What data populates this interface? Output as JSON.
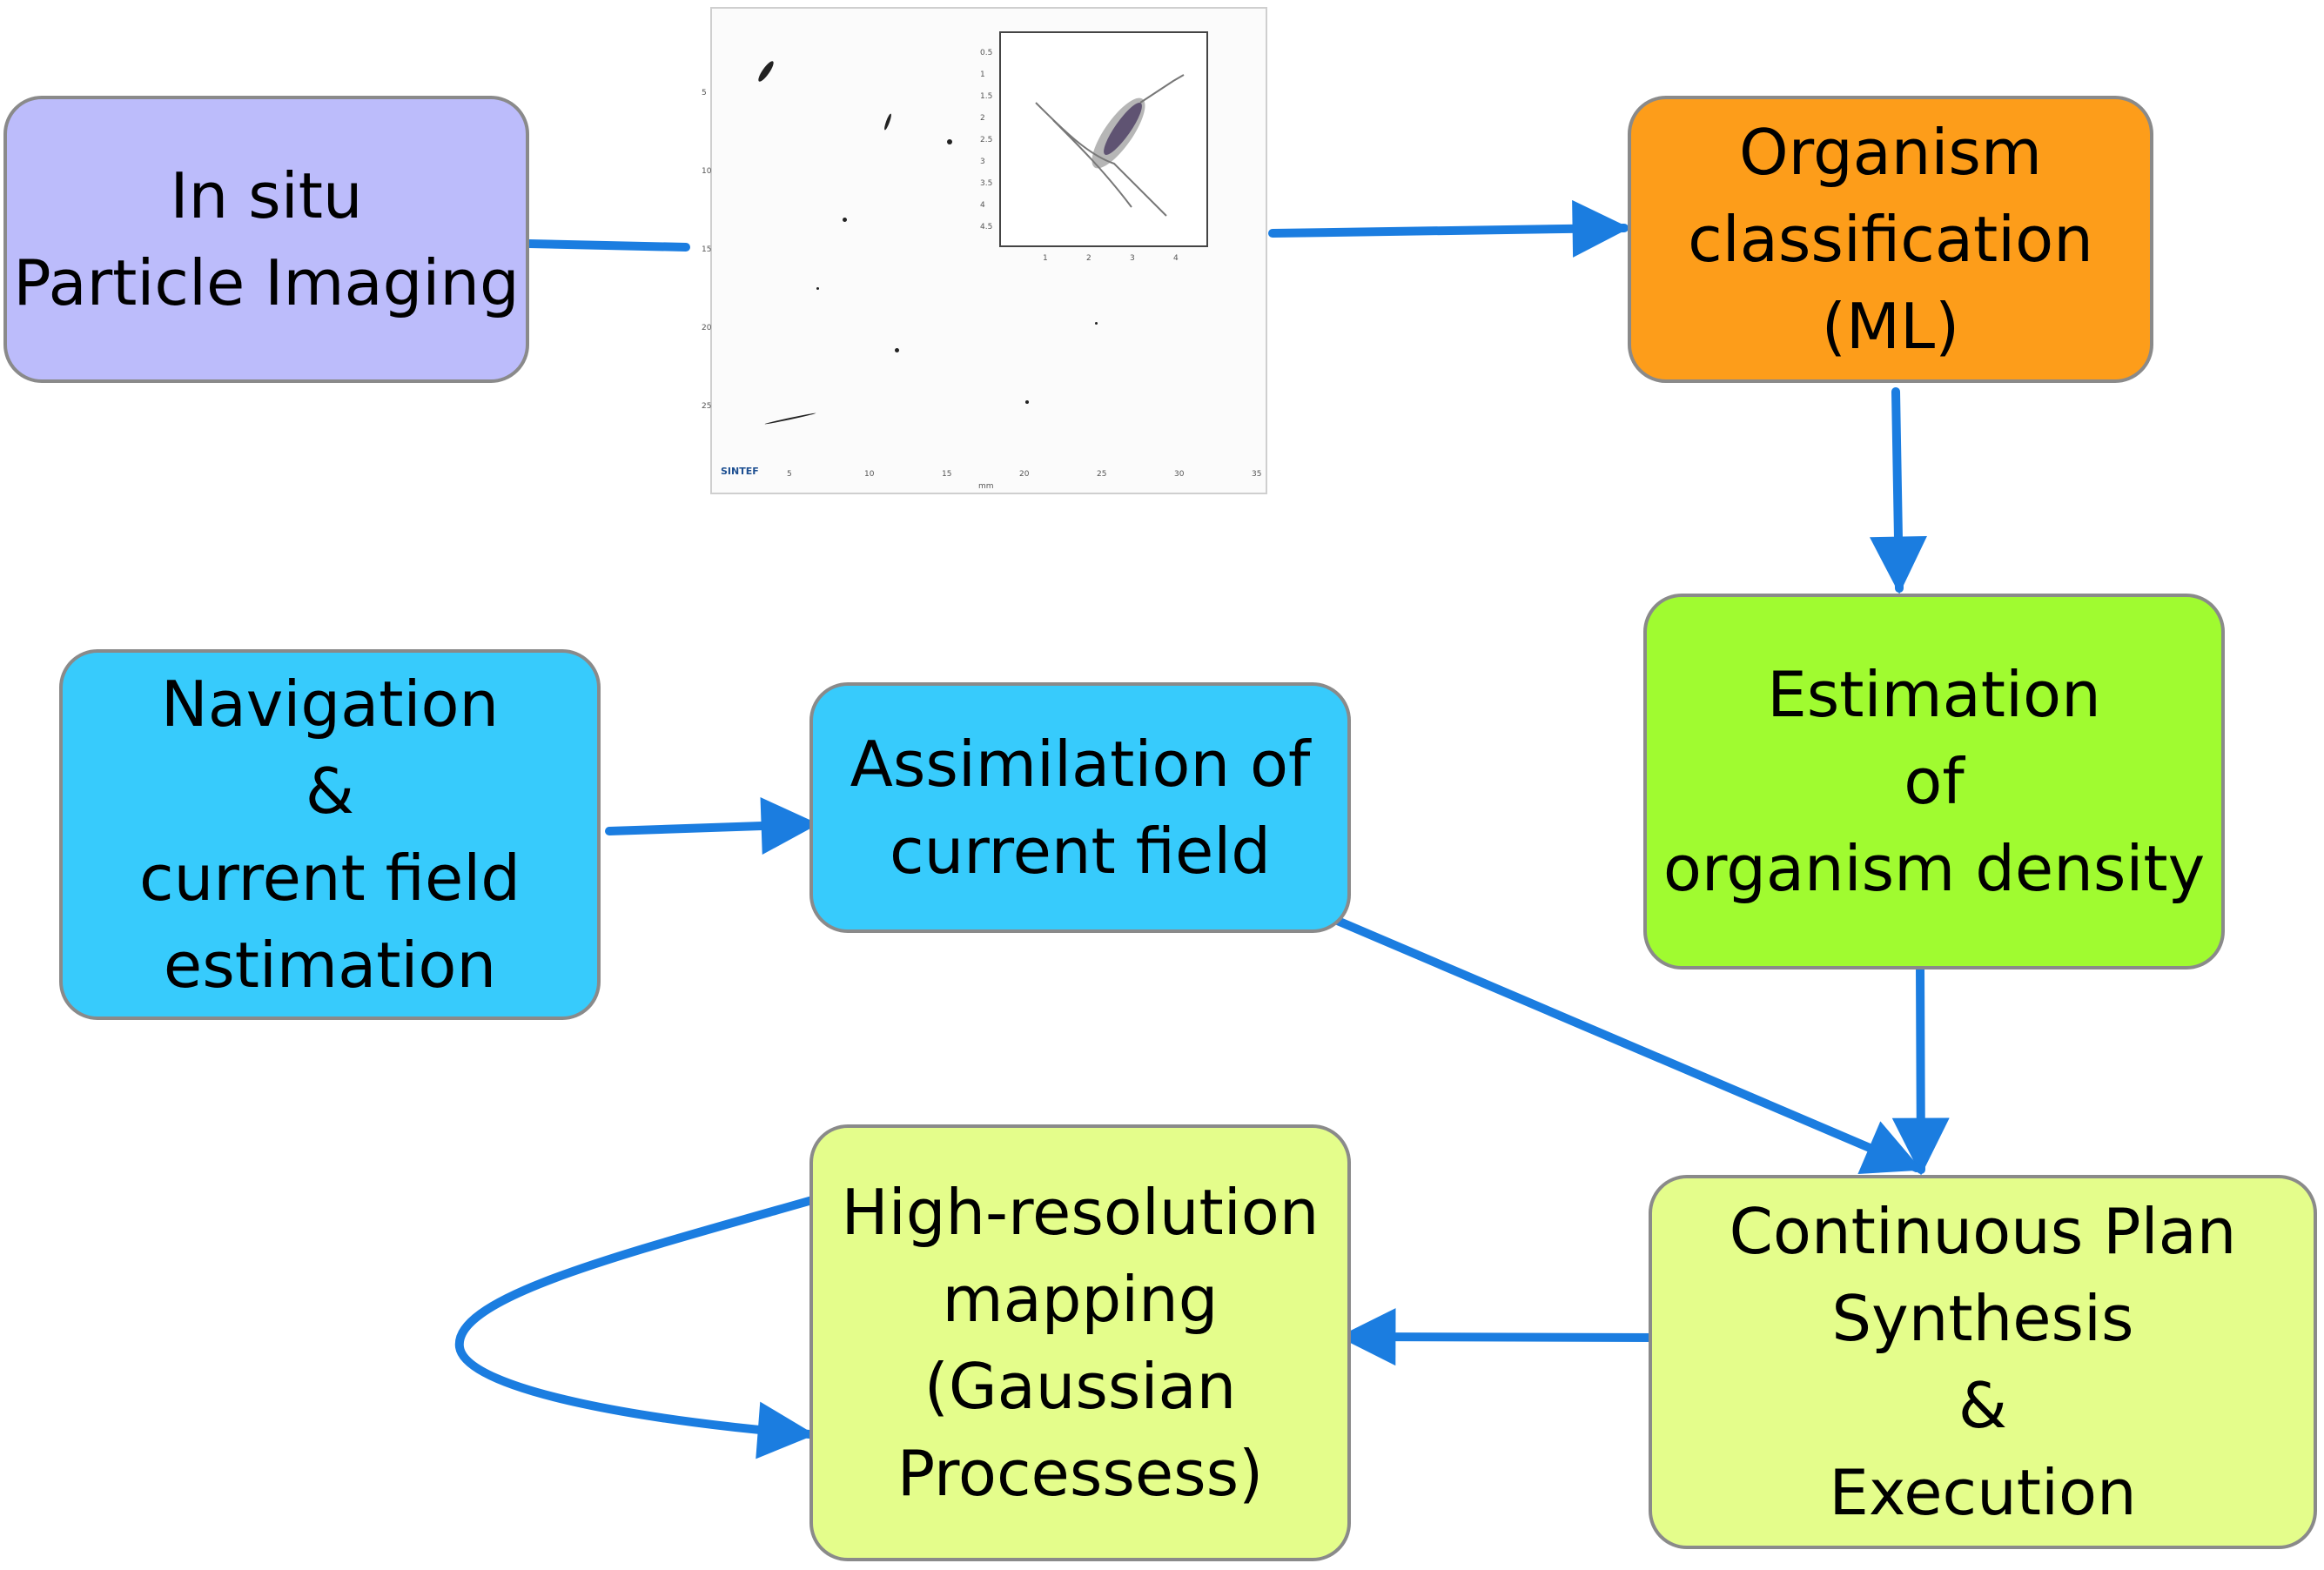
{
  "nodes": {
    "in_situ": {
      "lines": [
        "In situ",
        "Particle Imaging"
      ],
      "fill": "#bcbcfb"
    },
    "classification": {
      "lines": [
        "Organism",
        "classification",
        "(ML)"
      ],
      "fill": "#fd9d1a"
    },
    "density": {
      "lines": [
        "Estimation",
        "of",
        "organism density"
      ],
      "fill": "#a0fb30"
    },
    "navigation": {
      "lines": [
        "Navigation",
        "&",
        "current field",
        "estimation"
      ],
      "fill": "#37cbfc"
    },
    "assimilation": {
      "lines": [
        "Assimilation of",
        "current field"
      ],
      "fill": "#37cbfc"
    },
    "mapping": {
      "lines": [
        "High-resolution",
        "mapping",
        "(Gaussian",
        "Processess)"
      ],
      "fill": "#e4fd8b"
    },
    "plan": {
      "lines": [
        "Continuous Plan",
        "Synthesis",
        "&",
        "Execution"
      ],
      "fill": "#e4fd8b"
    }
  },
  "edges": [
    {
      "from": "in_situ",
      "to": "particle_image"
    },
    {
      "from": "particle_image",
      "to": "classification"
    },
    {
      "from": "classification",
      "to": "density"
    },
    {
      "from": "density",
      "to": "plan"
    },
    {
      "from": "navigation",
      "to": "assimilation"
    },
    {
      "from": "assimilation",
      "to": "plan"
    },
    {
      "from": "plan",
      "to": "mapping"
    },
    {
      "from": "mapping",
      "to": "mapping"
    }
  ],
  "arrow_color": "#1b7de0",
  "particle_image": {
    "logo": "SINTEF",
    "axis_unit": "mm",
    "x_ticks": [
      "5",
      "10",
      "15",
      "20",
      "25",
      "30",
      "35"
    ],
    "y_ticks": [
      "5",
      "10",
      "15",
      "20",
      "25"
    ],
    "inset_x_ticks": [
      "1",
      "2",
      "3",
      "4"
    ],
    "inset_y_ticks": [
      "0.5",
      "1",
      "1.5",
      "2",
      "2.5",
      "3",
      "3.5",
      "4",
      "4.5"
    ]
  }
}
